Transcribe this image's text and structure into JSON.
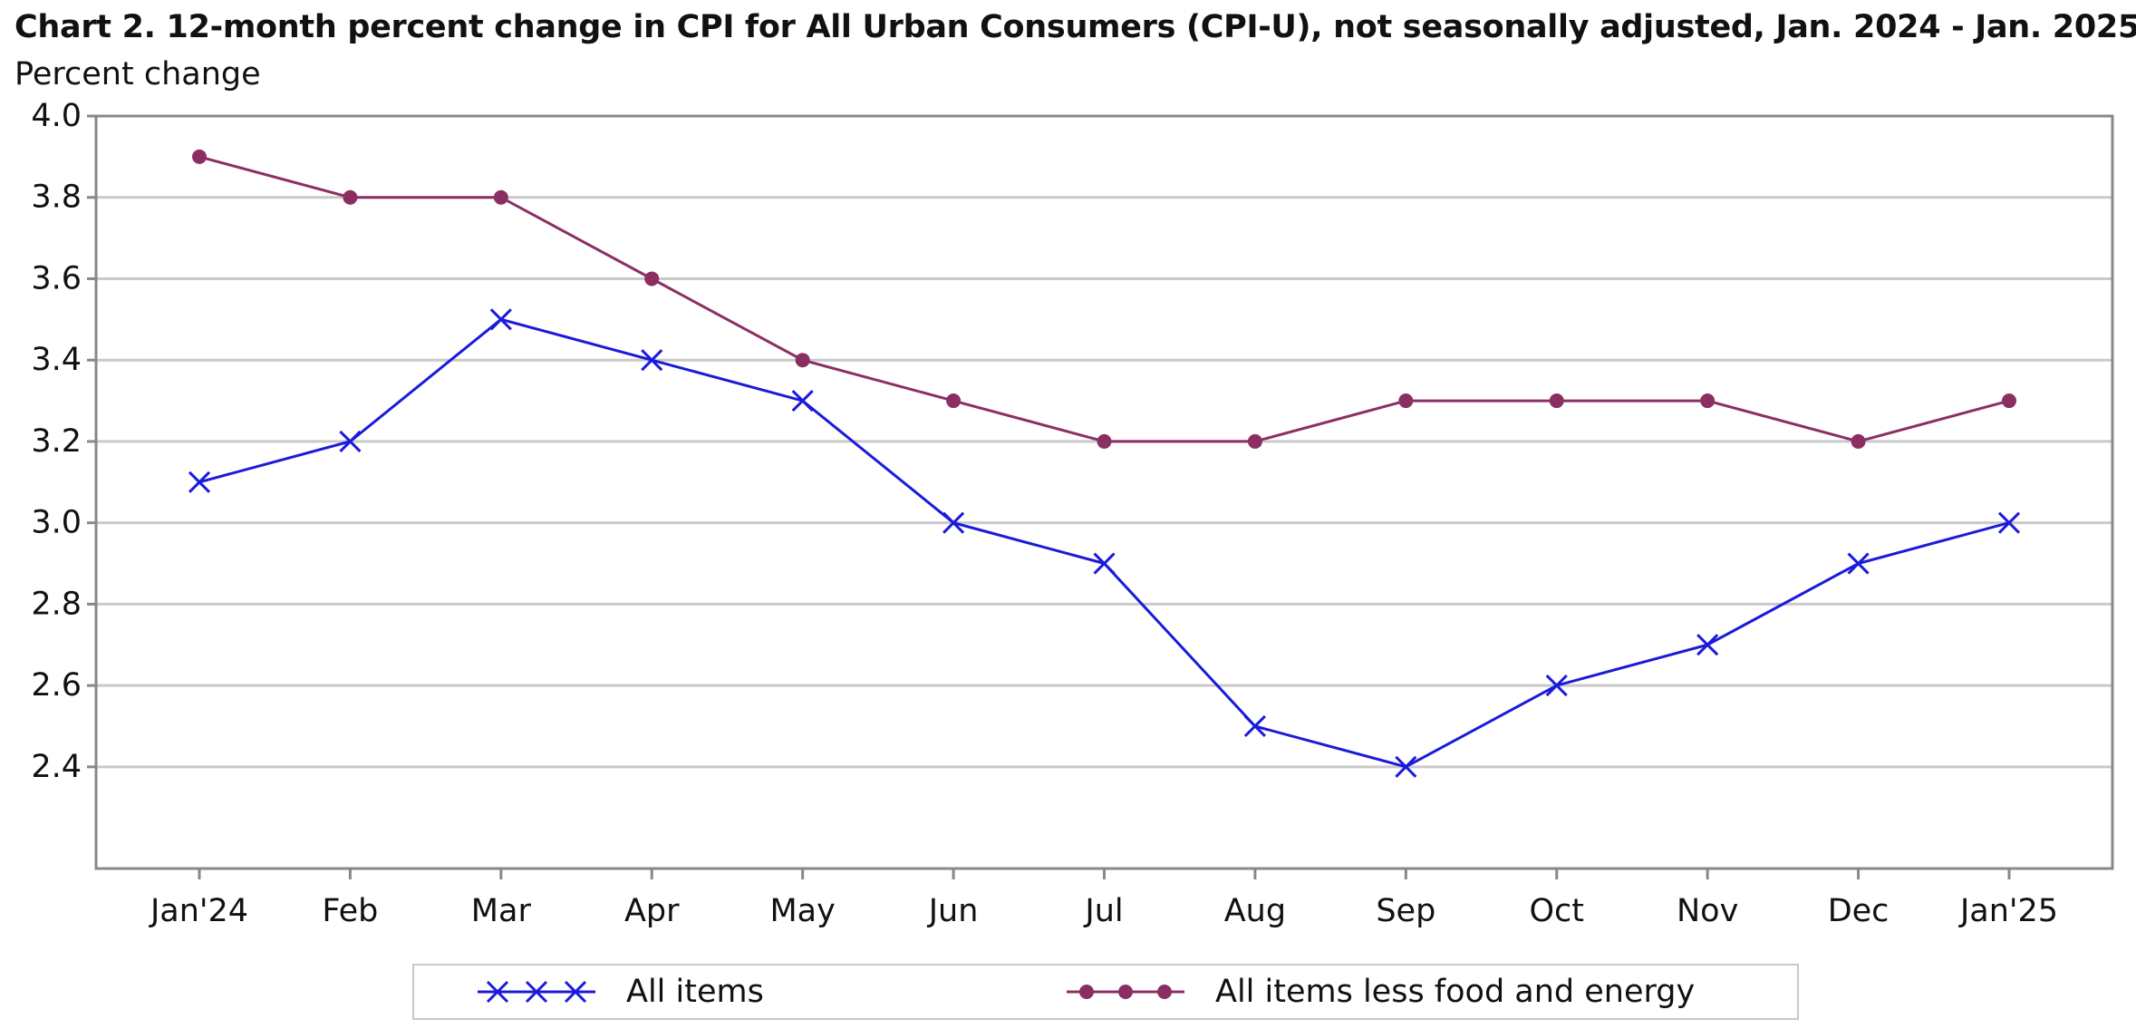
{
  "chart_data": {
    "type": "line",
    "title": "Chart 2. 12-month percent change in CPI for All Urban Consumers (CPI-U), not seasonally adjusted, Jan. 2024 - Jan. 2025",
    "ylabel": "Percent change",
    "xlabel": "",
    "categories": [
      "Jan'24",
      "Feb",
      "Mar",
      "Apr",
      "May",
      "Jun",
      "Jul",
      "Aug",
      "Sep",
      "Oct",
      "Nov",
      "Dec",
      "Jan'25"
    ],
    "ylim": [
      2.15,
      4.0
    ],
    "yticks": [
      "2.4",
      "2.6",
      "2.8",
      "3.0",
      "3.2",
      "3.4",
      "3.6",
      "3.8",
      "4.0"
    ],
    "grid": true,
    "legend_position": "bottom",
    "series": [
      {
        "name": "All items",
        "marker": "x",
        "color": "#1a1adb",
        "values": [
          3.1,
          3.2,
          3.5,
          3.4,
          3.3,
          3.0,
          2.9,
          2.5,
          2.4,
          2.6,
          2.7,
          2.9,
          3.0
        ]
      },
      {
        "name": "All items less food and energy",
        "marker": "circle",
        "color": "#8b2f63",
        "values": [
          3.9,
          3.8,
          3.8,
          3.6,
          3.4,
          3.3,
          3.2,
          3.2,
          3.3,
          3.3,
          3.3,
          3.2,
          3.3
        ]
      }
    ]
  }
}
